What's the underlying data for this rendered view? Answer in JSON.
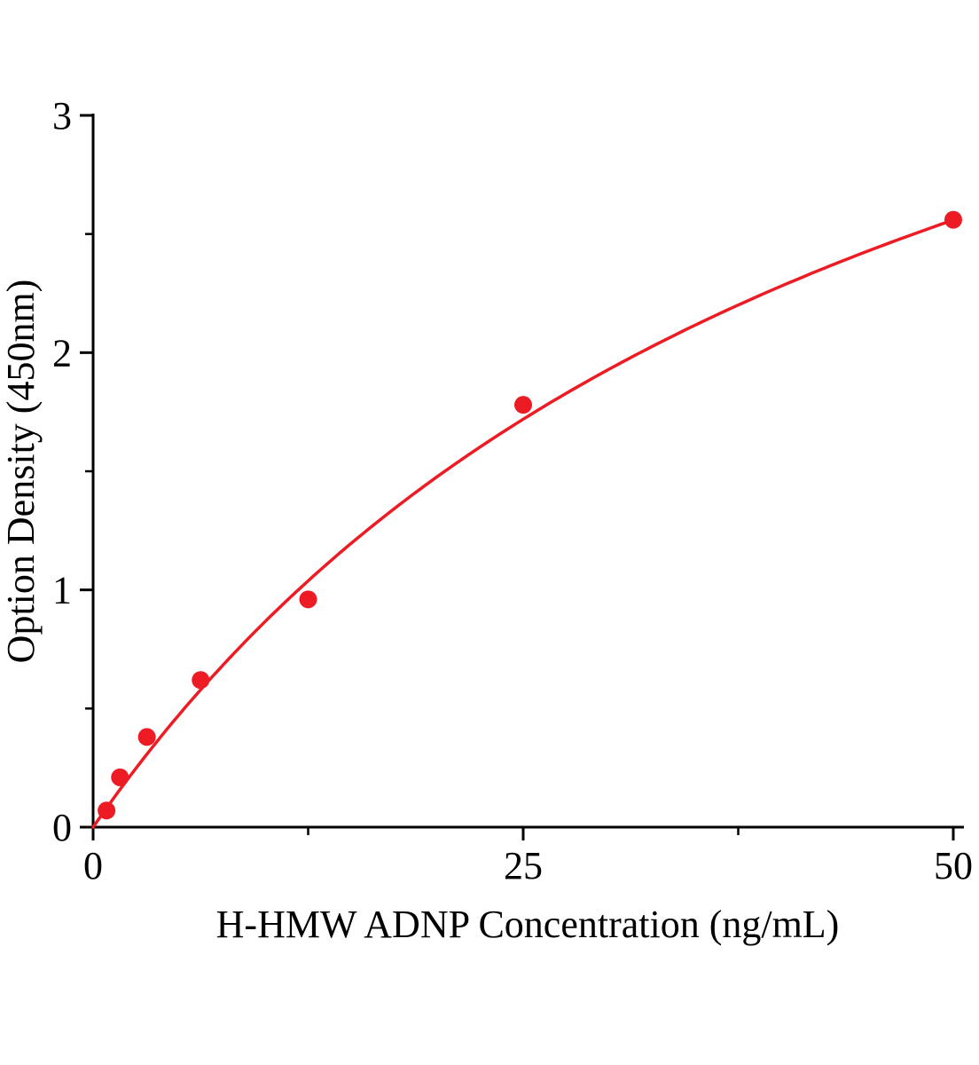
{
  "chart_data": {
    "type": "scatter",
    "title": "",
    "xlabel": "H-HMW ADNP Concentration (ng/mL)",
    "ylabel": "Option Density (450nm)",
    "x": [
      0.78,
      1.56,
      3.125,
      6.25,
      12.5,
      25,
      50
    ],
    "y": [
      0.07,
      0.21,
      0.38,
      0.62,
      0.96,
      1.78,
      2.56
    ],
    "xlim": [
      0,
      50
    ],
    "ylim": [
      0,
      3
    ],
    "x_major_ticks": [
      0,
      25,
      50
    ],
    "x_minor_ticks": [
      12.5,
      37.5
    ],
    "y_major_ticks": [
      0,
      1,
      2,
      3
    ],
    "y_minor_ticks": [
      0.5,
      1.5,
      2.5
    ],
    "grid": false,
    "point_color": "#ed1c24",
    "line_color": "#ed1c24",
    "axis_color": "#000000",
    "fit_curve": {
      "model": "michaelis-menten",
      "vmax": 5.0,
      "km": 47.7
    }
  }
}
